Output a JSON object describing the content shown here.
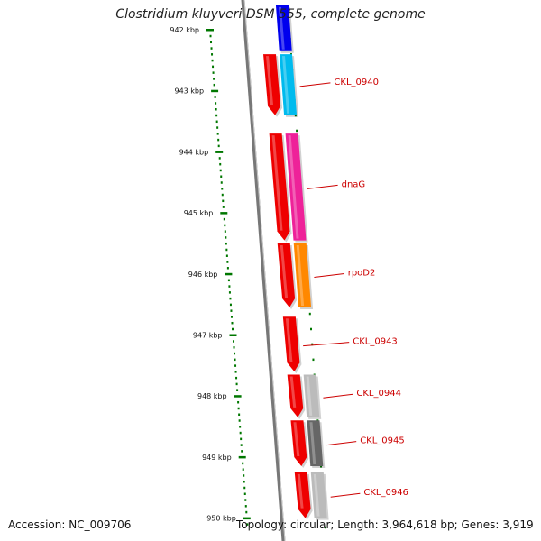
{
  "header": {
    "title": "Clostridium kluyveri DSM 555, complete genome"
  },
  "footer": {
    "accession": "Accession: NC_009706",
    "summary": "Topology: circular; Length: 3,964,618 bp; Genes: 3,919"
  },
  "colors": {
    "backbone": "#777777",
    "ruler_dots": "#007700",
    "forward_gene": "#ee0000",
    "label": "#cc0000",
    "blue_gene": "#0000ee",
    "cyan_gene": "#00bbee",
    "magenta_gene": "#ee2299",
    "orange_gene": "#ff8800",
    "grey_light": "#bbbbbb",
    "grey_dark": "#666666"
  },
  "ruler": {
    "unit": "kbp",
    "ticks": [
      {
        "kbp": 942,
        "label": "942 kbp"
      },
      {
        "kbp": 943,
        "label": "943 kbp"
      },
      {
        "kbp": 944,
        "label": "944 kbp"
      },
      {
        "kbp": 945,
        "label": "945 kbp"
      },
      {
        "kbp": 946,
        "label": "946 kbp"
      },
      {
        "kbp": 947,
        "label": "947 kbp"
      },
      {
        "kbp": 948,
        "label": "948 kbp"
      },
      {
        "kbp": 949,
        "label": "949 kbp"
      },
      {
        "kbp": 950,
        "label": "950 kbp"
      }
    ]
  },
  "genes": [
    {
      "id": "top-blue",
      "track": "annotation",
      "start_kbp": 941.6,
      "end_kbp": 942.35,
      "color": "blue_gene",
      "label": null
    },
    {
      "id": "g0940-fwd",
      "track": "forward",
      "start_kbp": 942.4,
      "end_kbp": 943.4,
      "color": "forward_gene",
      "label": null
    },
    {
      "id": "g0940-ann",
      "track": "annotation",
      "start_kbp": 942.4,
      "end_kbp": 943.4,
      "color": "cyan_gene",
      "label": "CKL_0940"
    },
    {
      "id": "dnaG-fwd",
      "track": "forward",
      "start_kbp": 943.7,
      "end_kbp": 945.45,
      "color": "forward_gene",
      "label": null
    },
    {
      "id": "dnaG-ann",
      "track": "annotation",
      "start_kbp": 943.7,
      "end_kbp": 945.45,
      "color": "magenta_gene",
      "label": "dnaG"
    },
    {
      "id": "rpoD2-fwd",
      "track": "forward",
      "start_kbp": 945.5,
      "end_kbp": 946.55,
      "color": "forward_gene",
      "label": null
    },
    {
      "id": "rpoD2-ann",
      "track": "annotation",
      "start_kbp": 945.5,
      "end_kbp": 946.55,
      "color": "orange_gene",
      "label": "rpoD2"
    },
    {
      "id": "g0943-fwd",
      "track": "forward",
      "start_kbp": 946.7,
      "end_kbp": 947.6,
      "color": "forward_gene",
      "label": "CKL_0943"
    },
    {
      "id": "g0944-fwd",
      "track": "forward",
      "start_kbp": 947.65,
      "end_kbp": 948.35,
      "color": "forward_gene",
      "label": null
    },
    {
      "id": "g0944-ann",
      "track": "annotation",
      "start_kbp": 947.65,
      "end_kbp": 948.35,
      "color": "grey_light",
      "label": "CKL_0944"
    },
    {
      "id": "g0945-fwd",
      "track": "forward",
      "start_kbp": 948.4,
      "end_kbp": 949.15,
      "color": "forward_gene",
      "label": null
    },
    {
      "id": "g0945-ann",
      "track": "annotation",
      "start_kbp": 948.4,
      "end_kbp": 949.15,
      "color": "grey_dark",
      "label": "CKL_0945"
    },
    {
      "id": "g0946-fwd",
      "track": "forward",
      "start_kbp": 949.25,
      "end_kbp": 950.0,
      "color": "forward_gene",
      "label": null
    },
    {
      "id": "g0946-ann",
      "track": "annotation",
      "start_kbp": 949.25,
      "end_kbp": 950.0,
      "color": "grey_light",
      "label": "CKL_0946"
    }
  ]
}
